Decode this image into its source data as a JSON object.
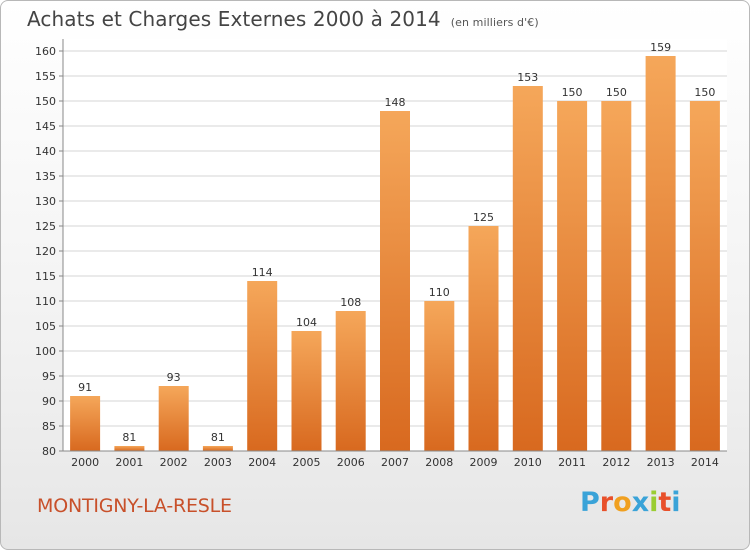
{
  "title": "Achats et Charges Externes 2000 à 2014",
  "subtitle": "(en milliers d'€)",
  "commune": "MONTIGNY-LA-RESLE",
  "logo": {
    "text": "Proxiti",
    "letter_colors": [
      "#3aa3d8",
      "#e8502a",
      "#f0a020",
      "#3aa3d8",
      "#9acd32",
      "#e8502a",
      "#3aa3d8"
    ]
  },
  "colors": {
    "bar_light": "#f5a75a",
    "bar_dark": "#d8691f",
    "grid": "#d6d6d6"
  },
  "chart_data": {
    "type": "bar",
    "categories": [
      "2000",
      "2001",
      "2002",
      "2003",
      "2004",
      "2005",
      "2006",
      "2007",
      "2008",
      "2009",
      "2010",
      "2011",
      "2012",
      "2013",
      "2014"
    ],
    "values": [
      91,
      81,
      93,
      81,
      114,
      104,
      108,
      148,
      110,
      125,
      153,
      150,
      150,
      159,
      150
    ],
    "ylim": [
      80,
      160
    ],
    "yticks": [
      80,
      85,
      90,
      95,
      100,
      105,
      110,
      115,
      120,
      125,
      130,
      135,
      140,
      145,
      150,
      155,
      160
    ],
    "grid": true
  }
}
